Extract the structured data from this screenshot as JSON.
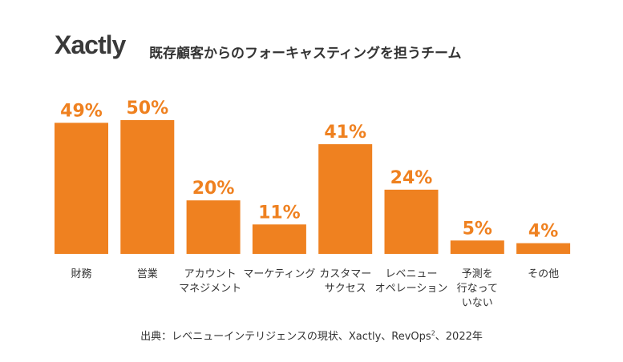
{
  "logo": {
    "text": "Xactly",
    "mark": "·"
  },
  "chart_data": {
    "type": "bar",
    "title": "既存顧客からのフォーキャスティングを担うチーム",
    "categories": [
      [
        "財務"
      ],
      [
        "営業"
      ],
      [
        "アカウント",
        "マネジメント"
      ],
      [
        "マーケティング"
      ],
      [
        "カスタマー",
        "サクセス"
      ],
      [
        "レベニュー",
        "オペレーション"
      ],
      [
        "予測を",
        "行なって",
        "いない"
      ],
      [
        "その他"
      ]
    ],
    "values": [
      49,
      50,
      20,
      11,
      41,
      24,
      5,
      4
    ],
    "value_labels": [
      "49%",
      "50%",
      "20%",
      "11%",
      "41%",
      "24%",
      "5%",
      "4%"
    ],
    "ylim": [
      0,
      50
    ],
    "grid": false,
    "bar_color": "#ef8120",
    "label_color": "#ef8120"
  },
  "source": {
    "text": "出典：レベニューインテリジェンスの現状、Xactly、RevOps",
    "sup": "2",
    "tail": "、2022年"
  }
}
